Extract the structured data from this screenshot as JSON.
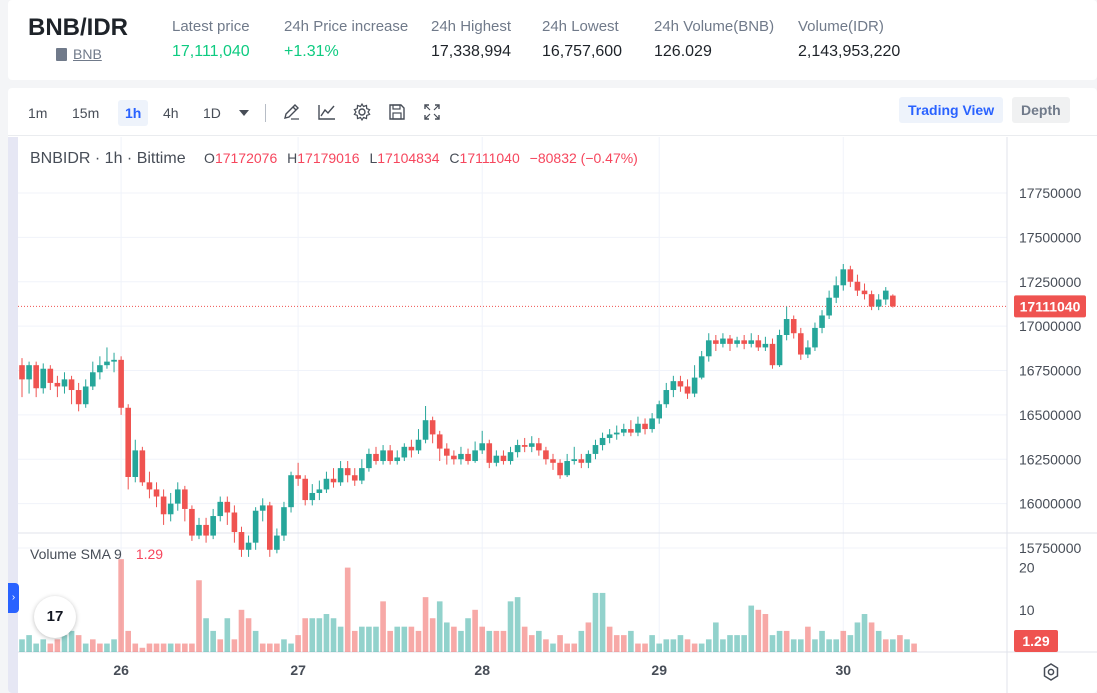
{
  "header": {
    "pair": "BNB/IDR",
    "base_link": "BNB",
    "stats": [
      {
        "label": "Latest price",
        "value": "17,111,040",
        "color": "green"
      },
      {
        "label": "24h Price increase",
        "value": "+1.31%",
        "color": "green"
      },
      {
        "label": "24h Highest",
        "value": "17,338,994",
        "color": ""
      },
      {
        "label": "24h Lowest",
        "value": "16,757,600",
        "color": ""
      },
      {
        "label": "24h Volume(BNB)",
        "value": "126.029",
        "color": ""
      },
      {
        "label": "Volume(IDR)",
        "value": "2,143,953,220",
        "color": ""
      }
    ]
  },
  "toolbar": {
    "intervals": [
      "1m",
      "15m",
      "1h",
      "4h",
      "1D"
    ],
    "active_interval": "1h",
    "tools": [
      "draw-icon",
      "indicators-icon",
      "settings-icon",
      "save-icon",
      "fullscreen-icon"
    ],
    "trading_view_label": "Trading View",
    "depth_label": "Depth"
  },
  "legend": {
    "symbol": "BNBIDR · 1h · Bittime",
    "o_label": "O",
    "o_value": "17172076",
    "h_label": "H",
    "h_value": "17179016",
    "l_label": "L",
    "l_value": "17104834",
    "c_label": "C",
    "c_value": "17111040",
    "change": "−80832 (−0.47%)"
  },
  "volume_legend": {
    "label": "Volume SMA 9",
    "value": "1.29"
  },
  "logo_text": "17",
  "chart_data": {
    "type": "candlestick",
    "price_axis": {
      "ticks": [
        15750000,
        16000000,
        16250000,
        16500000,
        16750000,
        17000000,
        17250000,
        17500000,
        17750000
      ],
      "labels": [
        "15750000",
        "16000000",
        "16250000",
        "16500000",
        "16750000",
        "17000000",
        "17250000",
        "17500000",
        "17750000"
      ]
    },
    "last_price_label": "17111040",
    "last_price": 17111040,
    "volume_axis": {
      "ticks": [
        10,
        20
      ],
      "labels": [
        "10",
        "20"
      ]
    },
    "volume_label": "1.29",
    "x_labels": [
      "26",
      "27",
      "28",
      "29",
      "30"
    ],
    "x_label_index": [
      14,
      39,
      65,
      90,
      116
    ],
    "candles": [
      [
        16780000,
        16700000,
        16820000,
        16600000
      ],
      [
        16700000,
        16780000,
        16800000,
        16620000
      ],
      [
        16780000,
        16650000,
        16800000,
        16600000
      ],
      [
        16650000,
        16760000,
        16790000,
        16620000
      ],
      [
        16760000,
        16680000,
        16780000,
        16640000
      ],
      [
        16680000,
        16660000,
        16720000,
        16600000
      ],
      [
        16660000,
        16700000,
        16740000,
        16620000
      ],
      [
        16700000,
        16640000,
        16720000,
        16560000
      ],
      [
        16640000,
        16560000,
        16680000,
        16520000
      ],
      [
        16560000,
        16660000,
        16700000,
        16540000
      ],
      [
        16660000,
        16740000,
        16800000,
        16640000
      ],
      [
        16740000,
        16780000,
        16830000,
        16700000
      ],
      [
        16780000,
        16800000,
        16880000,
        16760000
      ],
      [
        16800000,
        16810000,
        16850000,
        16740000
      ],
      [
        16810000,
        16540000,
        16830000,
        16500000
      ],
      [
        16540000,
        16150000,
        16560000,
        16080000
      ],
      [
        16150000,
        16300000,
        16360000,
        16120000
      ],
      [
        16300000,
        16120000,
        16320000,
        16100000
      ],
      [
        16120000,
        16080000,
        16180000,
        16030000
      ],
      [
        16080000,
        16040000,
        16120000,
        15980000
      ],
      [
        16040000,
        15940000,
        16080000,
        15880000
      ],
      [
        15940000,
        16000000,
        16060000,
        15900000
      ],
      [
        16000000,
        16080000,
        16120000,
        15960000
      ],
      [
        16080000,
        15970000,
        16100000,
        15900000
      ],
      [
        15970000,
        15820000,
        15990000,
        15790000
      ],
      [
        15820000,
        15880000,
        15920000,
        15800000
      ],
      [
        15880000,
        15820000,
        15920000,
        15780000
      ],
      [
        15820000,
        15930000,
        15970000,
        15800000
      ],
      [
        15930000,
        16010000,
        16040000,
        15900000
      ],
      [
        16010000,
        15950000,
        16040000,
        15880000
      ],
      [
        15950000,
        15840000,
        15990000,
        15780000
      ],
      [
        15840000,
        15740000,
        15870000,
        15700000
      ],
      [
        15740000,
        15780000,
        15820000,
        15700000
      ],
      [
        15780000,
        15960000,
        15980000,
        15740000
      ],
      [
        15960000,
        15990000,
        16030000,
        15900000
      ],
      [
        15990000,
        15740000,
        16010000,
        15700000
      ],
      [
        15740000,
        15820000,
        15860000,
        15720000
      ],
      [
        15820000,
        15980000,
        16010000,
        15790000
      ],
      [
        15980000,
        16160000,
        16180000,
        15950000
      ],
      [
        16160000,
        16140000,
        16230000,
        16100000
      ],
      [
        16140000,
        16020000,
        16160000,
        15990000
      ],
      [
        16020000,
        16060000,
        16110000,
        15990000
      ],
      [
        16060000,
        16080000,
        16130000,
        16020000
      ],
      [
        16080000,
        16140000,
        16180000,
        16060000
      ],
      [
        16140000,
        16120000,
        16200000,
        16090000
      ],
      [
        16120000,
        16200000,
        16240000,
        16100000
      ],
      [
        16200000,
        16160000,
        16240000,
        16120000
      ],
      [
        16160000,
        16130000,
        16200000,
        16100000
      ],
      [
        16130000,
        16200000,
        16250000,
        16110000
      ],
      [
        16200000,
        16280000,
        16310000,
        16180000
      ],
      [
        16280000,
        16240000,
        16320000,
        16220000
      ],
      [
        16240000,
        16300000,
        16330000,
        16220000
      ],
      [
        16300000,
        16240000,
        16330000,
        16220000
      ],
      [
        16240000,
        16260000,
        16300000,
        16220000
      ],
      [
        16260000,
        16320000,
        16340000,
        16240000
      ],
      [
        16320000,
        16300000,
        16360000,
        16260000
      ],
      [
        16300000,
        16360000,
        16420000,
        16280000
      ],
      [
        16360000,
        16470000,
        16550000,
        16340000
      ],
      [
        16470000,
        16390000,
        16490000,
        16340000
      ],
      [
        16390000,
        16310000,
        16410000,
        16240000
      ],
      [
        16310000,
        16270000,
        16340000,
        16220000
      ],
      [
        16270000,
        16250000,
        16300000,
        16220000
      ],
      [
        16250000,
        16280000,
        16320000,
        16220000
      ],
      [
        16280000,
        16240000,
        16310000,
        16220000
      ],
      [
        16240000,
        16300000,
        16350000,
        16230000
      ],
      [
        16300000,
        16340000,
        16410000,
        16280000
      ],
      [
        16340000,
        16230000,
        16360000,
        16200000
      ],
      [
        16230000,
        16270000,
        16300000,
        16210000
      ],
      [
        16270000,
        16240000,
        16300000,
        16220000
      ],
      [
        16240000,
        16290000,
        16320000,
        16220000
      ],
      [
        16290000,
        16330000,
        16360000,
        16260000
      ],
      [
        16330000,
        16320000,
        16370000,
        16290000
      ],
      [
        16320000,
        16340000,
        16380000,
        16290000
      ],
      [
        16340000,
        16300000,
        16370000,
        16270000
      ],
      [
        16300000,
        16250000,
        16320000,
        16220000
      ],
      [
        16250000,
        16230000,
        16280000,
        16190000
      ],
      [
        16230000,
        16160000,
        16250000,
        16140000
      ],
      [
        16160000,
        16240000,
        16280000,
        16150000
      ],
      [
        16240000,
        16250000,
        16320000,
        16220000
      ],
      [
        16250000,
        16230000,
        16280000,
        16200000
      ],
      [
        16230000,
        16280000,
        16300000,
        16200000
      ],
      [
        16280000,
        16330000,
        16360000,
        16250000
      ],
      [
        16330000,
        16370000,
        16400000,
        16300000
      ],
      [
        16370000,
        16390000,
        16420000,
        16340000
      ],
      [
        16390000,
        16400000,
        16440000,
        16360000
      ],
      [
        16400000,
        16420000,
        16450000,
        16380000
      ],
      [
        16420000,
        16400000,
        16470000,
        16380000
      ],
      [
        16400000,
        16450000,
        16490000,
        16380000
      ],
      [
        16450000,
        16420000,
        16480000,
        16390000
      ],
      [
        16420000,
        16480000,
        16510000,
        16400000
      ],
      [
        16480000,
        16560000,
        16580000,
        16450000
      ],
      [
        16560000,
        16640000,
        16680000,
        16540000
      ],
      [
        16640000,
        16690000,
        16720000,
        16600000
      ],
      [
        16690000,
        16660000,
        16720000,
        16630000
      ],
      [
        16660000,
        16620000,
        16700000,
        16590000
      ],
      [
        16620000,
        16710000,
        16780000,
        16600000
      ],
      [
        16710000,
        16830000,
        16860000,
        16700000
      ],
      [
        16830000,
        16920000,
        16960000,
        16800000
      ],
      [
        16920000,
        16900000,
        16950000,
        16860000
      ],
      [
        16900000,
        16930000,
        16960000,
        16880000
      ],
      [
        16930000,
        16900000,
        16950000,
        16860000
      ],
      [
        16900000,
        16920000,
        16940000,
        16880000
      ],
      [
        16920000,
        16900000,
        16950000,
        16870000
      ],
      [
        16900000,
        16920000,
        16960000,
        16880000
      ],
      [
        16920000,
        16880000,
        16950000,
        16860000
      ],
      [
        16880000,
        16900000,
        16940000,
        16860000
      ],
      [
        16900000,
        16780000,
        16930000,
        16760000
      ],
      [
        16780000,
        16950000,
        16980000,
        16770000
      ],
      [
        16950000,
        17040000,
        17110000,
        16920000
      ],
      [
        17040000,
        16960000,
        17060000,
        16930000
      ],
      [
        16960000,
        16840000,
        16990000,
        16810000
      ],
      [
        16840000,
        16880000,
        16920000,
        16820000
      ],
      [
        16880000,
        16990000,
        17020000,
        16860000
      ],
      [
        16990000,
        17060000,
        17090000,
        16960000
      ],
      [
        17060000,
        17160000,
        17200000,
        17040000
      ],
      [
        17160000,
        17230000,
        17280000,
        17130000
      ],
      [
        17230000,
        17320000,
        17350000,
        17200000
      ],
      [
        17320000,
        17250000,
        17340000,
        17220000
      ],
      [
        17250000,
        17200000,
        17290000,
        17170000
      ],
      [
        17200000,
        17180000,
        17240000,
        17150000
      ],
      [
        17180000,
        17110000,
        17200000,
        17090000
      ],
      [
        17110000,
        17150000,
        17180000,
        17090000
      ],
      [
        17150000,
        17200000,
        17220000,
        17120000
      ],
      [
        17172076,
        17111040,
        17179016,
        17104834
      ]
    ],
    "volumes": [
      [
        3,
        1
      ],
      [
        4,
        1
      ],
      [
        2,
        1
      ],
      [
        3,
        1
      ],
      [
        2,
        0
      ],
      [
        3,
        0
      ],
      [
        4,
        1
      ],
      [
        5,
        1
      ],
      [
        4,
        0
      ],
      [
        2,
        1
      ],
      [
        3,
        0
      ],
      [
        2,
        0
      ],
      [
        2,
        1
      ],
      [
        3,
        1
      ],
      [
        22,
        0
      ],
      [
        5,
        0
      ],
      [
        2,
        0
      ],
      [
        1,
        0
      ],
      [
        2,
        0
      ],
      [
        2,
        0
      ],
      [
        2,
        0
      ],
      [
        2,
        1
      ],
      [
        2,
        0
      ],
      [
        2,
        0
      ],
      [
        2,
        0
      ],
      [
        17,
        0
      ],
      [
        8,
        1
      ],
      [
        5,
        1
      ],
      [
        3,
        0
      ],
      [
        8,
        1
      ],
      [
        3,
        0
      ],
      [
        10,
        0
      ],
      [
        8,
        0
      ],
      [
        5,
        1
      ],
      [
        2,
        0
      ],
      [
        2,
        0
      ],
      [
        2,
        0
      ],
      [
        3,
        1
      ],
      [
        2,
        1
      ],
      [
        4,
        0
      ],
      [
        8,
        0
      ],
      [
        8,
        1
      ],
      [
        8,
        1
      ],
      [
        9,
        1
      ],
      [
        8,
        1
      ],
      [
        6,
        1
      ],
      [
        20,
        0
      ],
      [
        5,
        0
      ],
      [
        6,
        1
      ],
      [
        6,
        1
      ],
      [
        6,
        1
      ],
      [
        12,
        0
      ],
      [
        5,
        0
      ],
      [
        6,
        1
      ],
      [
        6,
        1
      ],
      [
        6,
        0
      ],
      [
        5,
        0
      ],
      [
        13,
        0
      ],
      [
        8,
        0
      ],
      [
        12,
        1
      ],
      [
        7,
        1
      ],
      [
        6,
        0
      ],
      [
        5,
        1
      ],
      [
        8,
        1
      ],
      [
        10,
        0
      ],
      [
        6,
        0
      ],
      [
        5,
        1
      ],
      [
        5,
        0
      ],
      [
        5,
        0
      ],
      [
        12,
        1
      ],
      [
        13,
        1
      ],
      [
        6,
        0
      ],
      [
        4,
        0
      ],
      [
        5,
        1
      ],
      [
        3,
        0
      ],
      [
        2,
        1
      ],
      [
        4,
        0
      ],
      [
        2,
        0
      ],
      [
        2,
        0
      ],
      [
        5,
        1
      ],
      [
        7,
        0
      ],
      [
        14,
        1
      ],
      [
        14,
        1
      ],
      [
        6,
        0
      ],
      [
        4,
        0
      ],
      [
        4,
        0
      ],
      [
        5,
        1
      ],
      [
        2,
        0
      ],
      [
        2,
        0
      ],
      [
        4,
        1
      ],
      [
        2,
        1
      ],
      [
        3,
        1
      ],
      [
        3,
        1
      ],
      [
        4,
        1
      ],
      [
        3,
        0
      ],
      [
        2,
        0
      ],
      [
        2,
        1
      ],
      [
        3,
        1
      ],
      [
        7,
        1
      ],
      [
        3,
        1
      ],
      [
        4,
        1
      ],
      [
        4,
        1
      ],
      [
        4,
        1
      ],
      [
        11,
        1
      ],
      [
        10,
        0
      ],
      [
        9,
        0
      ],
      [
        4,
        1
      ],
      [
        5,
        1
      ],
      [
        5,
        0
      ],
      [
        3,
        1
      ],
      [
        3,
        1
      ],
      [
        6,
        0
      ],
      [
        3,
        1
      ],
      [
        5,
        1
      ],
      [
        3,
        1
      ],
      [
        3,
        1
      ],
      [
        5,
        0
      ],
      [
        4,
        1
      ],
      [
        7,
        1
      ],
      [
        9,
        1
      ],
      [
        7,
        0
      ],
      [
        5,
        1
      ],
      [
        3,
        0
      ],
      [
        3,
        1
      ],
      [
        4,
        0
      ],
      [
        3,
        1
      ],
      [
        2,
        0
      ]
    ]
  }
}
